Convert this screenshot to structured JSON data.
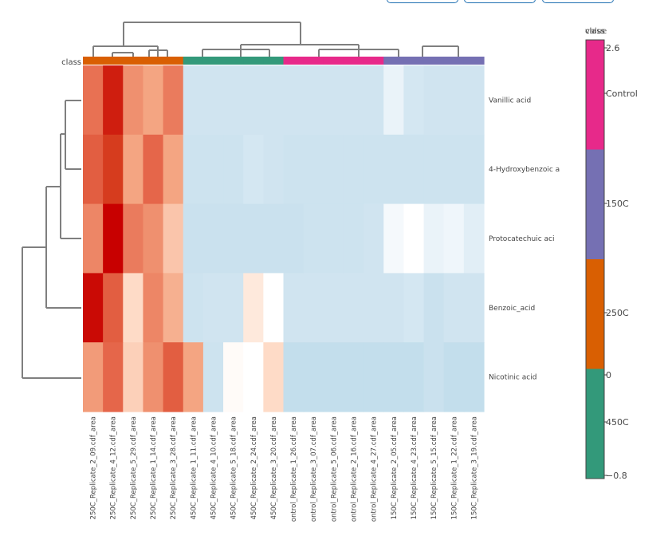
{
  "chart_data": {
    "type": "heatmap",
    "row_annotation_label": "class",
    "rows": [
      "Vanillic acid",
      "4-Hydroxybenzoic a",
      "Protocatechuic aci",
      "Benzoic_acid",
      "Nicotinic acid"
    ],
    "columns": [
      "250C_Replicate_2_09.cdf_area",
      "250C_Replicate_4_12.cdf_area",
      "250C_Replicate_5_29.cdf_area",
      "250C_Replicate_1_14.cdf_area",
      "250C_Replicate_3_28.cdf_area",
      "450C_Replicate_1_11.cdf_area",
      "450C_Replicate_4_10.cdf_area",
      "450C_Replicate_5_18.cdf_area",
      "450C_Replicate_2_24.cdf_area",
      "450C_Replicate_3_20.cdf_area",
      "ontrol_Replicate_1_26.cdf_area",
      "ontrol_Replicate_3_07.cdf_area",
      "ontrol_Replicate_5_06.cdf_area",
      "ontrol_Replicate_2_16.cdf_area",
      "ontrol_Replicate_4_27.cdf_area",
      "150C_Replicate_2_05.cdf_area",
      "150C_Replicate_4_23.cdf_area",
      "150C_Replicate_5_15.cdf_area",
      "150C_Replicate_1_22.cdf_area",
      "150C_Replicate_3_19.cdf_area"
    ],
    "column_classes": [
      "250C",
      "250C",
      "250C",
      "250C",
      "250C",
      "450C",
      "450C",
      "450C",
      "450C",
      "450C",
      "Control",
      "Control",
      "Control",
      "Control",
      "Control",
      "150C",
      "150C",
      "150C",
      "150C",
      "150C"
    ],
    "class_colors": {
      "250C": "#d95f02",
      "450C": "#33997a",
      "Control": "#e7298a",
      "150C": "#7570b3"
    },
    "values": [
      [
        1.4,
        2.3,
        1.1,
        0.9,
        1.3,
        -0.5,
        -0.5,
        -0.5,
        -0.5,
        -0.5,
        -0.5,
        -0.5,
        -0.5,
        -0.5,
        -0.5,
        -0.2,
        -0.45,
        -0.5,
        -0.5,
        -0.5
      ],
      [
        1.6,
        2.0,
        0.9,
        1.5,
        0.9,
        -0.55,
        -0.55,
        -0.55,
        -0.45,
        -0.5,
        -0.55,
        -0.55,
        -0.55,
        -0.55,
        -0.55,
        -0.55,
        -0.55,
        -0.55,
        -0.55,
        -0.55
      ],
      [
        1.2,
        2.6,
        1.3,
        1.1,
        0.6,
        -0.6,
        -0.6,
        -0.6,
        -0.6,
        -0.6,
        -0.6,
        -0.55,
        -0.55,
        -0.55,
        -0.5,
        -0.1,
        0.0,
        -0.2,
        -0.15,
        -0.3
      ],
      [
        2.5,
        1.6,
        0.4,
        1.2,
        0.8,
        -0.55,
        -0.5,
        -0.5,
        0.25,
        0.0,
        -0.5,
        -0.5,
        -0.5,
        -0.5,
        -0.5,
        -0.5,
        -0.45,
        -0.6,
        -0.5,
        -0.5
      ],
      [
        1.0,
        1.5,
        0.5,
        1.1,
        1.6,
        0.9,
        -0.55,
        0.05,
        0.0,
        0.4,
        -0.7,
        -0.7,
        -0.7,
        -0.7,
        -0.7,
        -0.7,
        -0.7,
        -0.6,
        -0.7,
        -0.7
      ]
    ],
    "color_range": [
      -0.8,
      2.6
    ],
    "colorbar": {
      "title": "class",
      "title_overlap": "value",
      "tick_labels": [
        "2.6",
        "Control",
        "150C",
        "250C",
        "0",
        "450C",
        "−0.8"
      ]
    }
  }
}
